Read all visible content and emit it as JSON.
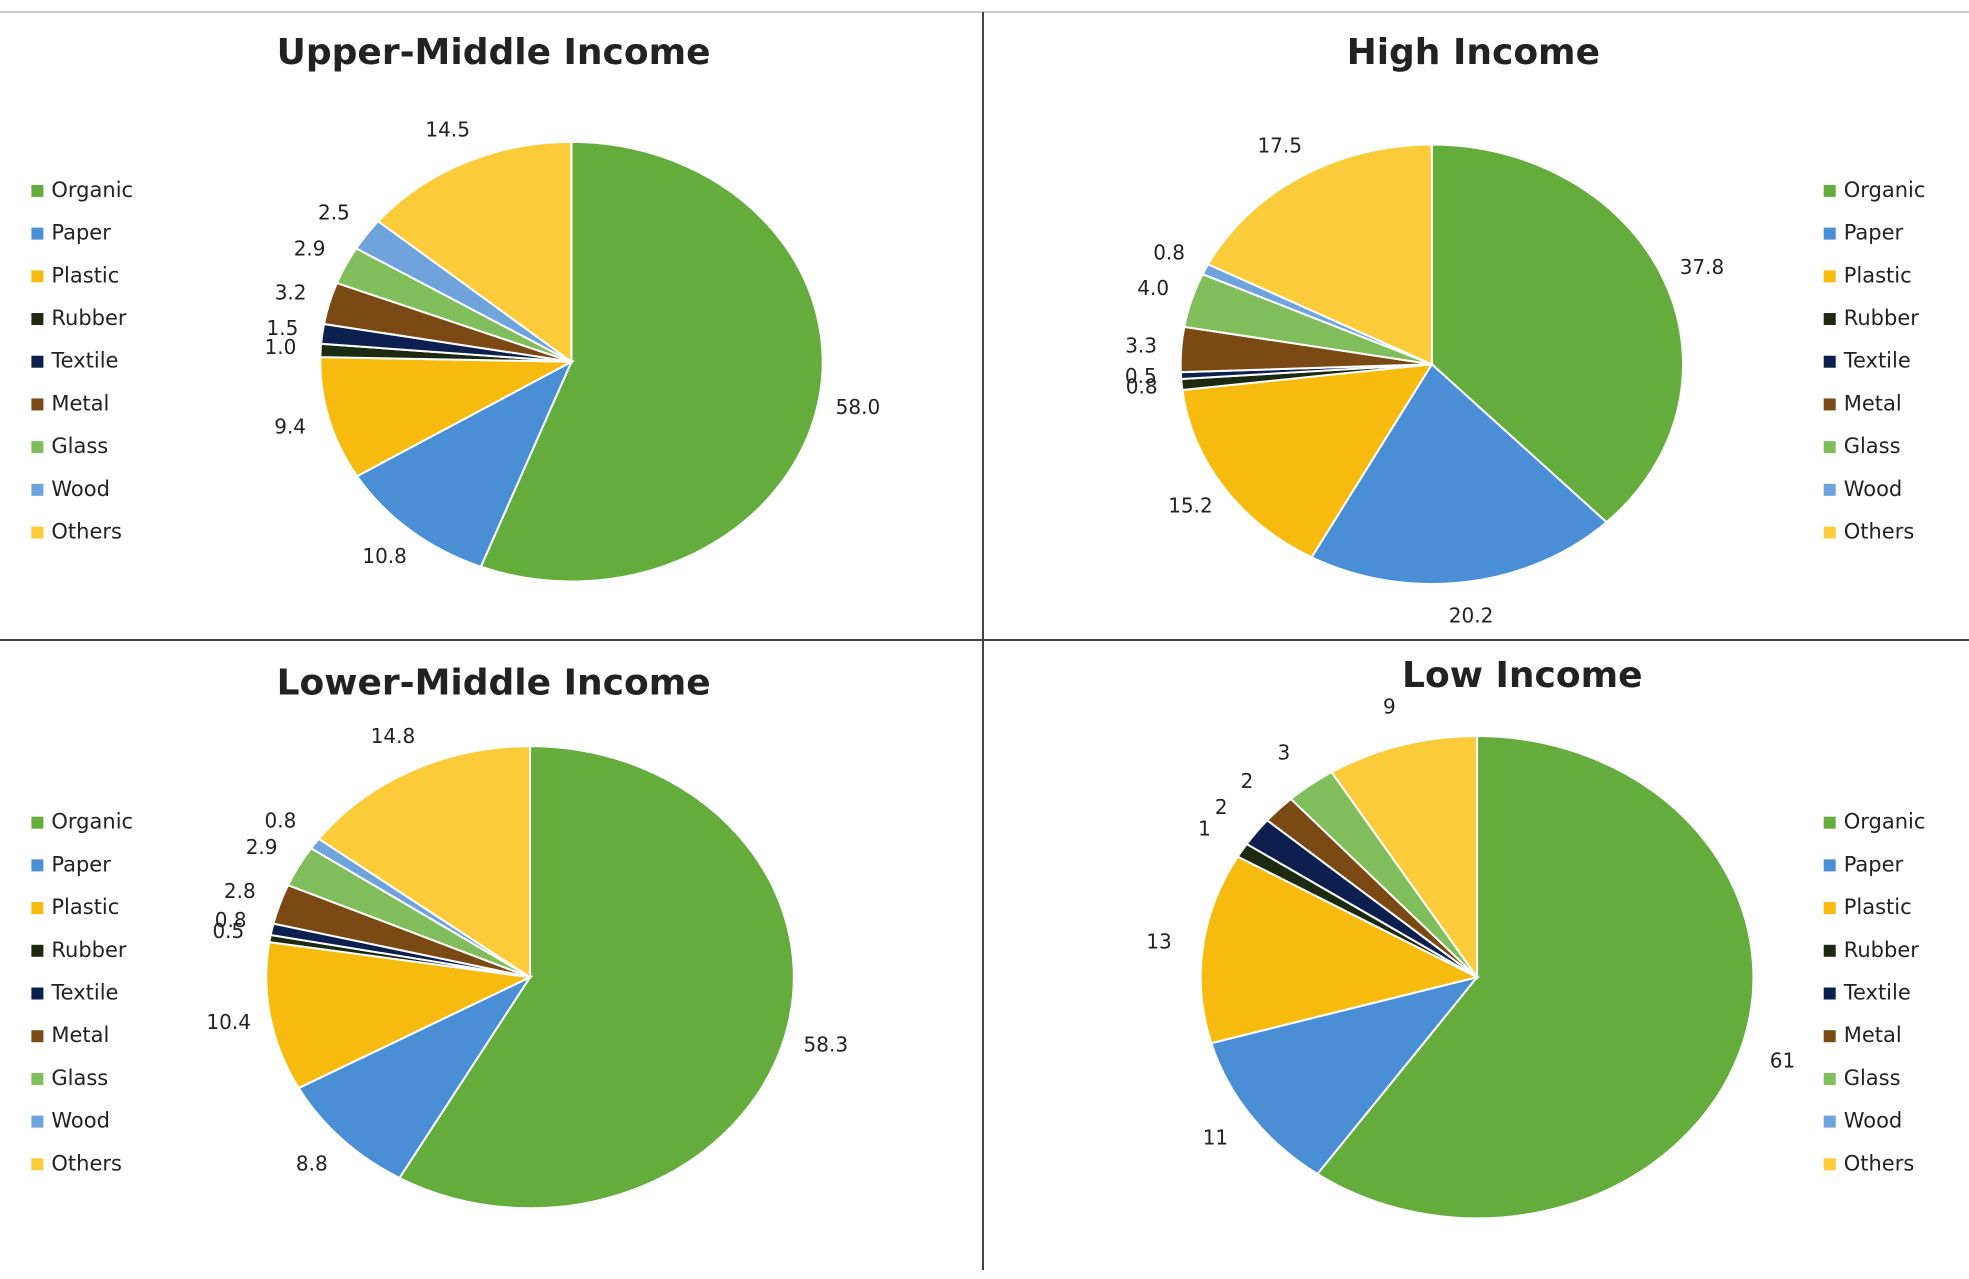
{
  "chart_data": [
    {
      "type": "pie",
      "title": "Upper-Middle Income",
      "categories": [
        "Organic",
        "Paper",
        "Plastic",
        "Rubber",
        "Textile",
        "Metal",
        "Glass",
        "Wood",
        "Others"
      ],
      "values": [
        58.0,
        10.8,
        9.4,
        1.0,
        1.5,
        3.2,
        2.9,
        2.5,
        14.5
      ],
      "value_labels": [
        "58.0",
        "10.8",
        "9.4",
        "1.0",
        "1.5",
        "3.2",
        "2.9",
        "2.5",
        "14.5"
      ],
      "colors": [
        "#64ac3c",
        "#4a8ed6",
        "#f6bb0e",
        "#1d2a12",
        "#0d1f4e",
        "#7b4a14",
        "#7fbe5a",
        "#6ea3dc",
        "#fbcb3a"
      ],
      "legend": "left"
    },
    {
      "type": "pie",
      "title": "High Income",
      "categories": [
        "Organic",
        "Paper",
        "Plastic",
        "Rubber",
        "Textile",
        "Metal",
        "Glass",
        "Wood",
        "Others"
      ],
      "values": [
        37.8,
        20.2,
        15.2,
        0.8,
        0.5,
        3.3,
        4.0,
        0.8,
        17.5
      ],
      "value_labels": [
        "37.8",
        "20.2",
        "15.2",
        "0.8",
        "0.5",
        "3.3",
        "4.0",
        "0.8",
        "17.5"
      ],
      "colors": [
        "#64ac3c",
        "#4a8ed6",
        "#f6bb0e",
        "#1d2a12",
        "#0d1f4e",
        "#7b4a14",
        "#7fbe5a",
        "#6ea3dc",
        "#fbcb3a"
      ],
      "legend": "right"
    },
    {
      "type": "pie",
      "title": "Lower-Middle Income",
      "categories": [
        "Organic",
        "Paper",
        "Plastic",
        "Rubber",
        "Textile",
        "Metal",
        "Glass",
        "Wood",
        "Others"
      ],
      "values": [
        58.3,
        8.8,
        10.4,
        0.5,
        0.8,
        2.8,
        2.9,
        0.8,
        14.8
      ],
      "colors": [
        "#64ac3c",
        "#4a8ed6",
        "#f6bb0e",
        "#1d2a12",
        "#0d1f4e",
        "#7b4a14",
        "#7fbe5a",
        "#6ea3dc",
        "#fbcb3a"
      ],
      "legend": "left"
    },
    {
      "type": "pie",
      "title": "Low Income",
      "categories": [
        "Organic",
        "Paper",
        "Plastic",
        "Rubber",
        "Textile",
        "Metal",
        "Glass",
        "Wood",
        "Others"
      ],
      "values": [
        61,
        11,
        13,
        1,
        2,
        2,
        3,
        null,
        9
      ],
      "colors": [
        "#64ac3c",
        "#4a8ed6",
        "#f6bb0e",
        "#1d2a12",
        "#0d1f4e",
        "#7b4a14",
        "#7fbe5a",
        "#6ea3dc",
        "#fbcb3a"
      ],
      "legend": "right"
    }
  ]
}
